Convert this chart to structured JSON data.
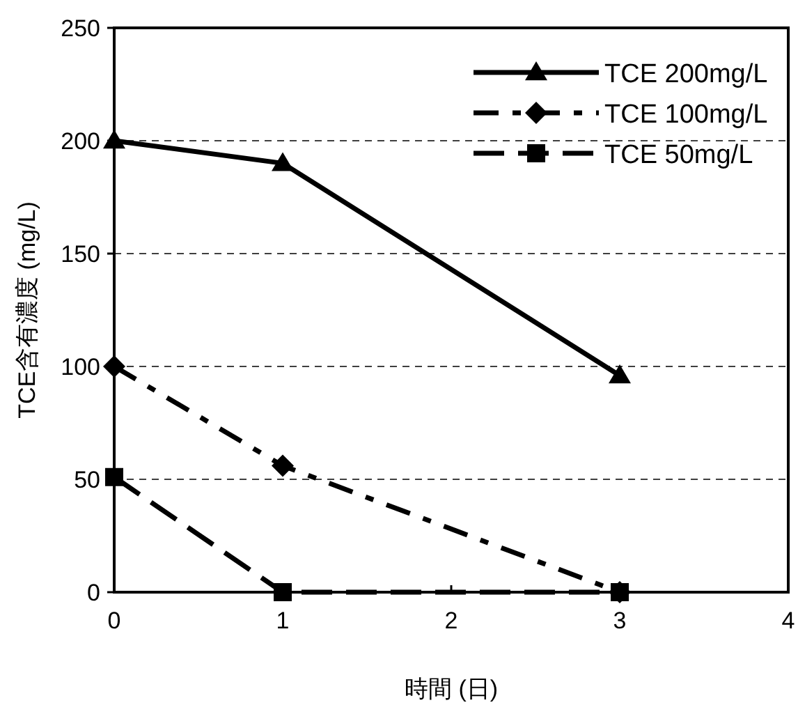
{
  "chart_data": {
    "type": "line",
    "xlabel": "時間 (日)",
    "ylabel": "TCE含有濃度 (mg/L)",
    "xlim": [
      0,
      4
    ],
    "xticks": [
      0,
      1,
      2,
      3,
      4
    ],
    "ylim": [
      0,
      250
    ],
    "yticks": [
      0,
      50,
      100,
      150,
      200,
      250
    ],
    "grid": "y",
    "legend": "top right",
    "series": [
      {
        "name": "TCE 200mg/L",
        "color": "#000000",
        "marker": "triangle",
        "line_style": "solid",
        "x": [
          0,
          1,
          3
        ],
        "values": [
          200,
          190,
          96
        ]
      },
      {
        "name": "TCE 100mg/L",
        "color": "#000000",
        "marker": "diamond",
        "line_style": "dashdot",
        "x": [
          0,
          1,
          3
        ],
        "values": [
          100,
          56,
          0
        ]
      },
      {
        "name": "TCE 50mg/L",
        "color": "#000000",
        "marker": "square",
        "line_style": "dashed",
        "x": [
          0,
          1,
          3
        ],
        "values": [
          51,
          0,
          0
        ]
      }
    ]
  }
}
